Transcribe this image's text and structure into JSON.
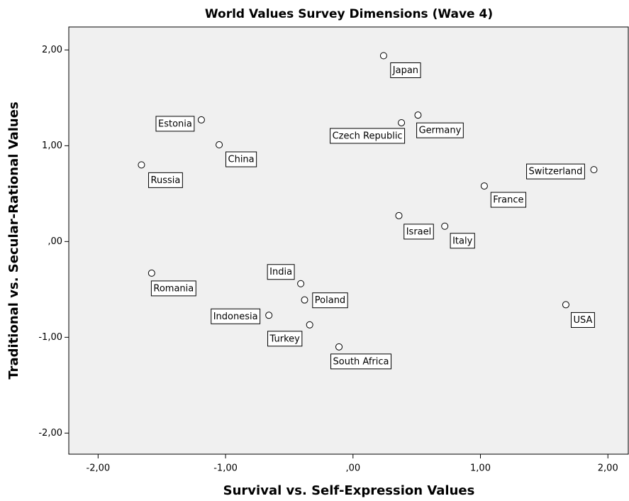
{
  "chart_data": {
    "type": "scatter",
    "title": "World Values Survey Dimensions (Wave 4)",
    "x_label": "Survival vs. Self-Expression Values",
    "y_label": "Traditional vs. Secular-Rational Values",
    "labels": [
      "Japan",
      "Estonia",
      "Czech Republic",
      "Germany",
      "China",
      "Russia",
      "Switzerland",
      "France",
      "Israel",
      "Italy",
      "Romania",
      "India",
      "Poland",
      "Indonesia",
      "Turkey",
      "South Africa",
      "USA"
    ],
    "x": [
      0.24,
      -1.19,
      0.38,
      0.51,
      -1.05,
      -1.66,
      1.89,
      1.03,
      0.36,
      0.72,
      -1.58,
      -0.41,
      -0.38,
      -0.66,
      -0.34,
      -0.11,
      1.67
    ],
    "values": [
      1.94,
      1.27,
      1.24,
      1.32,
      1.01,
      0.8,
      0.75,
      0.58,
      0.27,
      0.16,
      -0.33,
      -0.44,
      -0.61,
      -0.77,
      -0.87,
      -1.1,
      -0.66
    ],
    "xlim": [
      -2.23,
      2.16
    ],
    "ylim": [
      -2.22,
      2.24
    ],
    "xticks": [
      {
        "value": -2,
        "label": "-2,00"
      },
      {
        "value": -1,
        "label": "-1,00"
      },
      {
        "value": 0,
        "label": ",00"
      },
      {
        "value": 1,
        "label": "1,00"
      },
      {
        "value": 2,
        "label": "2,00"
      }
    ],
    "yticks": [
      {
        "value": -2,
        "label": "-2,00"
      },
      {
        "value": -1,
        "label": "-1,00"
      },
      {
        "value": 0,
        "label": ",00"
      },
      {
        "value": 1,
        "label": "1,00"
      },
      {
        "value": 2,
        "label": "2,00"
      }
    ],
    "background": "#f0f0f0",
    "marker_color": "#000000"
  }
}
